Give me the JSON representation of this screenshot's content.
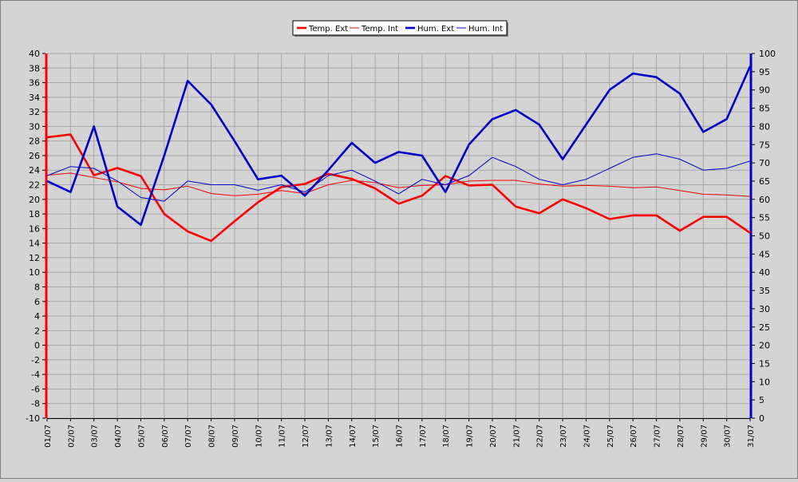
{
  "colors": {
    "background": "#d4d4d4",
    "grid": "#a8a8a8",
    "temp": "#ff0000",
    "hum": "#0000cc",
    "legend_bg": "#ffffff"
  },
  "chart_data": {
    "type": "line",
    "grid": true,
    "legend_position": "top-center",
    "x": [
      "01/07",
      "02/07",
      "03/07",
      "04/07",
      "05/07",
      "06/07",
      "07/07",
      "08/07",
      "09/07",
      "10/07",
      "11/07",
      "12/07",
      "13/07",
      "14/07",
      "15/07",
      "16/07",
      "17/07",
      "18/07",
      "19/07",
      "20/07",
      "21/07",
      "22/07",
      "23/07",
      "24/07",
      "25/07",
      "26/07",
      "27/07",
      "28/07",
      "29/07",
      "30/07",
      "31/07"
    ],
    "y_left": {
      "ylim": [
        -10,
        40
      ],
      "ticks": [
        40,
        38,
        36,
        34,
        32,
        30,
        28,
        26,
        24,
        22,
        20,
        18,
        16,
        14,
        12,
        10,
        8,
        6,
        4,
        2,
        0,
        -2,
        -4,
        -6,
        -8,
        -10
      ]
    },
    "y_right": {
      "ylim": [
        0,
        100
      ],
      "ticks": [
        100,
        95,
        90,
        85,
        80,
        75,
        70,
        65,
        60,
        55,
        50,
        45,
        40,
        35,
        30,
        25,
        20,
        15,
        10,
        5,
        0
      ]
    },
    "series": [
      {
        "name": "Temp. Ext",
        "axis": "left",
        "color": "#ff0000",
        "width": "thick",
        "values": [
          28.5,
          28.9,
          23.3,
          24.3,
          23.2,
          18.0,
          15.6,
          14.3,
          17.0,
          19.6,
          21.7,
          22.1,
          23.5,
          22.8,
          21.5,
          19.4,
          20.5,
          23.2,
          21.9,
          22.0,
          19.0,
          18.1,
          20.0,
          18.8,
          17.3,
          17.8,
          17.8,
          15.7,
          17.6,
          17.6,
          15.4
        ]
      },
      {
        "name": "Temp. Int",
        "axis": "left",
        "color": "#ff0000",
        "width": "thin",
        "values": [
          23.3,
          23.6,
          23.0,
          22.4,
          21.5,
          21.3,
          21.8,
          20.8,
          20.5,
          20.7,
          21.2,
          20.8,
          22.0,
          22.6,
          22.3,
          21.6,
          21.9,
          22.0,
          22.5,
          22.6,
          22.6,
          22.1,
          21.8,
          21.9,
          21.8,
          21.6,
          21.7,
          21.2,
          20.7,
          20.6,
          20.4
        ]
      },
      {
        "name": "Hum. Ext",
        "axis": "right",
        "color": "#0000cc",
        "width": "thick",
        "values": [
          65,
          62,
          80,
          58,
          53,
          72,
          92.5,
          86,
          76,
          65.5,
          66.5,
          61,
          68,
          75.5,
          70,
          73,
          72,
          62,
          75,
          82,
          84.5,
          80.5,
          71,
          80.5,
          90,
          94.5,
          93.5,
          89,
          78.5,
          82,
          96.5
        ]
      },
      {
        "name": "Hum. Int",
        "axis": "right",
        "color": "#0000cc",
        "width": "thin",
        "values": [
          66.5,
          69,
          68.5,
          65,
          60.5,
          59.5,
          65,
          64,
          64,
          62.5,
          64,
          62,
          66.5,
          68,
          65,
          61.5,
          65.5,
          64,
          66.5,
          71.5,
          69,
          65.5,
          64,
          65.5,
          68.5,
          71.5,
          72.5,
          71,
          68,
          68.5,
          70.5
        ]
      }
    ]
  }
}
